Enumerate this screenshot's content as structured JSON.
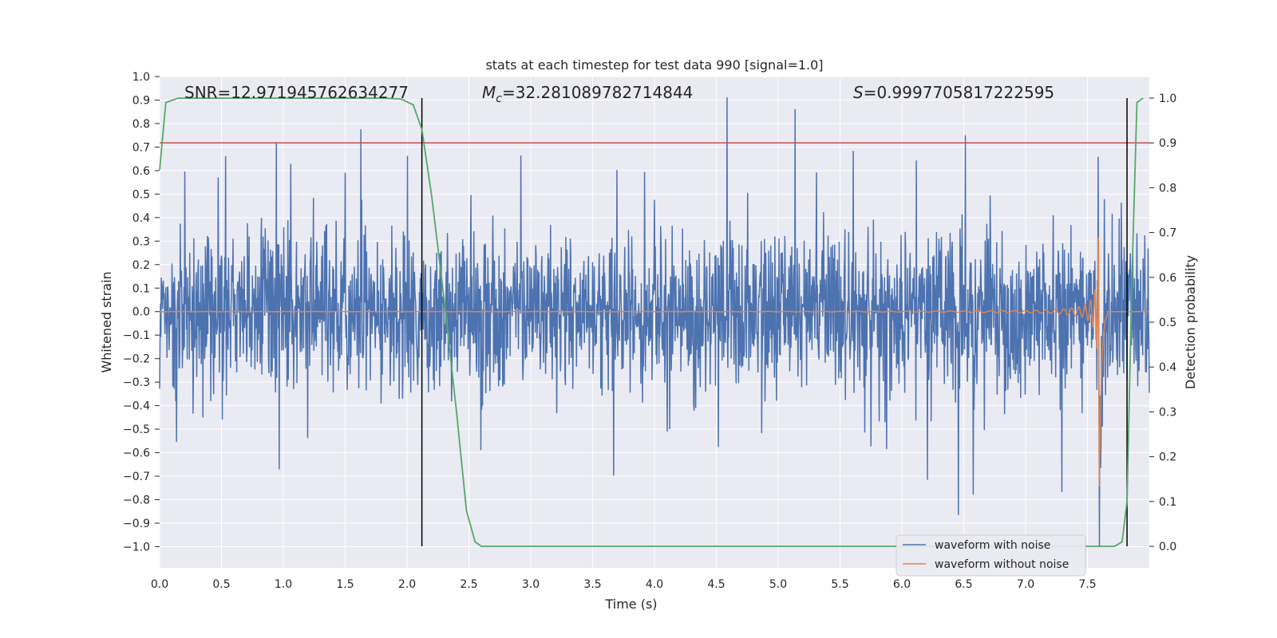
{
  "chart_data": {
    "type": "line",
    "title": "stats at each timestep for test data 990 [signal=1.0]",
    "xlabel": "Time (s)",
    "ylabel": "Whitened strain",
    "y2label": "Detection probability",
    "xlim": [
      0.0,
      8.0
    ],
    "ylim": [
      -1.09,
      1.0
    ],
    "y2lim": [
      -0.048,
      1.048
    ],
    "xticks": [
      "0.0",
      "0.5",
      "1.0",
      "1.5",
      "2.0",
      "2.5",
      "3.0",
      "3.5",
      "4.0",
      "4.5",
      "5.0",
      "5.5",
      "6.0",
      "6.5",
      "7.0",
      "7.5"
    ],
    "yticks": [
      "1.0",
      "0.9",
      "0.8",
      "0.7",
      "0.6",
      "0.5",
      "0.4",
      "0.3",
      "0.2",
      "0.1",
      "0.0",
      "−0.1",
      "−0.2",
      "−0.3",
      "−0.4",
      "−0.5",
      "−0.6",
      "−0.7",
      "−0.8",
      "−0.9",
      "−1.0"
    ],
    "y2ticks": [
      "1.0",
      "0.9",
      "0.8",
      "0.7",
      "0.6",
      "0.5",
      "0.4",
      "0.3",
      "0.2",
      "0.1",
      "0.0"
    ],
    "annotations": {
      "snr": "SNR=12.971945762634277",
      "mc_symbol": "M",
      "mc_sub": "c",
      "mc_value": "=32.281089782714844",
      "s_symbol": "S",
      "s_value": "=0.9997705817222595"
    },
    "threshold": {
      "value": 0.9,
      "axis": "y2",
      "color": "#c44e52"
    },
    "vlines": [
      2.12,
      7.82
    ],
    "series": [
      {
        "name": "waveform with noise",
        "color": "#4c72b0",
        "kind": "noisy strain, |amplitude| ~0.3 with peaks to ~0.9"
      },
      {
        "name": "waveform without noise",
        "color": "#dd8452",
        "kind": "chirp, amplitude growing to ~0.75, merger at 7.6 s"
      },
      {
        "name": "detection probability",
        "color": "#55a868",
        "axis": "y2",
        "x": [
          0.0,
          0.05,
          0.15,
          0.5,
          1.0,
          1.5,
          1.8,
          1.95,
          2.05,
          2.12,
          2.2,
          2.3,
          2.4,
          2.48,
          2.55,
          2.6,
          2.65,
          3.0,
          4.0,
          5.0,
          6.0,
          7.0,
          7.6,
          7.72,
          7.78,
          7.82,
          7.86,
          7.9,
          7.95
        ],
        "y": [
          0.84,
          0.99,
          1.0,
          1.0,
          1.0,
          1.0,
          1.0,
          0.998,
          0.985,
          0.93,
          0.78,
          0.55,
          0.3,
          0.08,
          0.01,
          0.0,
          0.0,
          0.0,
          0.0,
          0.0,
          0.0,
          0.0,
          0.0,
          0.0,
          0.01,
          0.1,
          0.6,
          0.99,
          1.0
        ]
      }
    ],
    "legend": {
      "position": "lower-right",
      "entries": [
        "waveform with noise",
        "waveform without noise"
      ]
    }
  }
}
